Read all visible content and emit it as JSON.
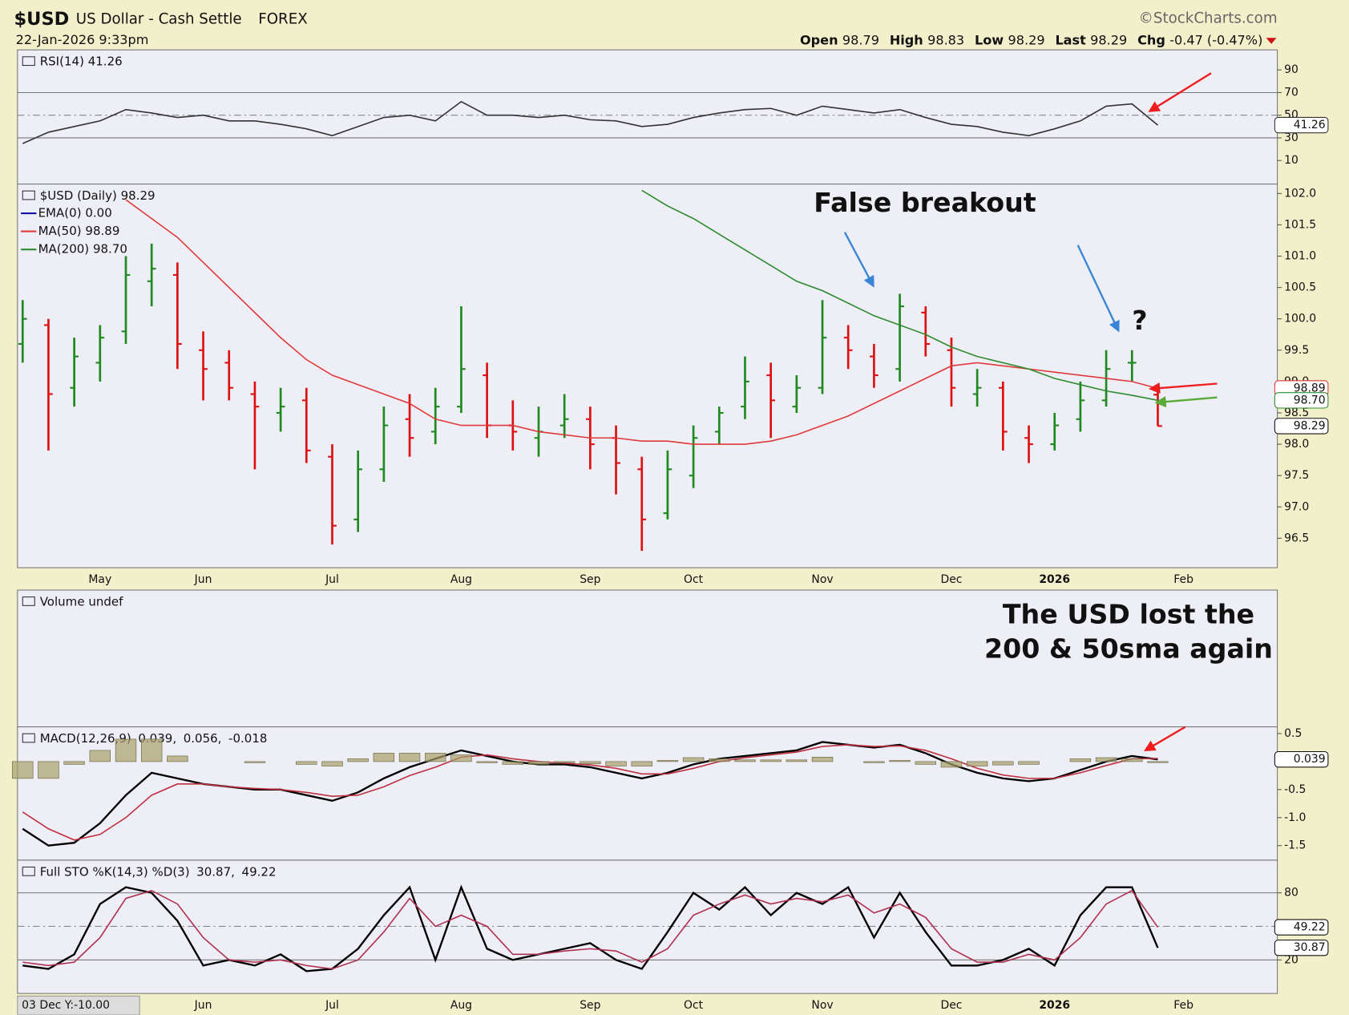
{
  "header": {
    "symbol": "$USD",
    "name": "US Dollar - Cash Settle",
    "exchange": "FOREX",
    "source": "©StockCharts.com",
    "date": "22-Jan-2026 9:33pm",
    "quote": [
      {
        "label": "Open",
        "value": "98.79"
      },
      {
        "label": "High",
        "value": "98.83"
      },
      {
        "label": "Low",
        "value": "98.29"
      },
      {
        "label": "Last",
        "value": "98.29"
      },
      {
        "label": "Chg",
        "value": "-0.47 (-0.47%)"
      }
    ]
  },
  "chart_data": [
    {
      "type": "line",
      "title": "RSI(14) 41.26",
      "color": "#333333",
      "values": [
        25,
        35,
        40,
        45,
        55,
        52,
        48,
        50,
        45,
        45,
        42,
        38,
        32,
        40,
        48,
        50,
        45,
        62,
        50,
        50,
        48,
        50,
        46,
        45,
        40,
        42,
        48,
        52,
        55,
        56,
        50,
        58,
        55,
        52,
        55,
        48,
        42,
        40,
        35,
        32,
        38,
        45,
        58,
        60,
        41.26,
        null
      ],
      "ylim": [
        -10.8,
        107.7
      ],
      "yticks": [
        90,
        70,
        50,
        30,
        10
      ],
      "ref_lines": [
        70,
        30
      ],
      "mid_line": 50,
      "tags": [
        {
          "value": 41.26,
          "label": "41.26",
          "color": "#333333"
        }
      ]
    },
    {
      "type": "ohlc",
      "title": "$USD (Daily) 98.29",
      "legend_layout": "stacked",
      "up_color": "#1f8a1f",
      "down_color": "#dd1111",
      "categories": [
        null,
        null,
        null,
        "May",
        null,
        null,
        null,
        "Jun",
        null,
        null,
        null,
        null,
        "Jul",
        null,
        null,
        null,
        null,
        "Aug",
        null,
        null,
        null,
        null,
        "Sep",
        null,
        null,
        null,
        "Oct",
        null,
        null,
        null,
        null,
        "Nov",
        null,
        null,
        null,
        null,
        "Dec",
        null,
        null,
        null,
        "2026",
        null,
        null,
        null,
        null,
        "Feb"
      ],
      "ohlc": {
        "open": [
          99.6,
          99.9,
          98.9,
          99.3,
          99.8,
          100.6,
          100.7,
          99.5,
          99.3,
          98.8,
          98.5,
          98.7,
          97.8,
          96.8,
          97.6,
          98.4,
          98.2,
          98.6,
          99.1,
          98.3,
          98.1,
          98.3,
          98.4,
          98.1,
          97.6,
          96.9,
          97.5,
          98.2,
          98.6,
          99.1,
          98.6,
          98.9,
          99.7,
          99.4,
          99.2,
          100.1,
          99.5,
          98.8,
          98.9,
          98.1,
          98.0,
          98.4,
          98.7,
          99.3,
          98.79,
          null
        ],
        "high": [
          100.3,
          100.0,
          99.7,
          99.9,
          101.0,
          101.2,
          100.9,
          99.8,
          99.5,
          99.0,
          98.9,
          98.9,
          98.0,
          97.9,
          98.6,
          98.8,
          98.9,
          100.2,
          99.3,
          98.7,
          98.6,
          98.8,
          98.6,
          98.3,
          97.8,
          97.9,
          98.3,
          98.6,
          99.4,
          99.3,
          99.1,
          100.3,
          99.9,
          99.6,
          100.4,
          100.2,
          99.7,
          99.2,
          99.0,
          98.3,
          98.5,
          99.0,
          99.5,
          99.5,
          98.83,
          null
        ],
        "low": [
          99.3,
          97.9,
          98.6,
          99.0,
          99.6,
          100.2,
          99.2,
          98.7,
          98.7,
          97.6,
          98.2,
          97.7,
          96.4,
          96.6,
          97.4,
          97.8,
          98.0,
          98.5,
          98.1,
          97.9,
          97.8,
          98.1,
          97.6,
          97.2,
          96.3,
          96.8,
          97.3,
          98.0,
          98.4,
          98.1,
          98.5,
          98.8,
          99.2,
          98.9,
          99.0,
          99.4,
          98.6,
          98.6,
          97.9,
          97.7,
          97.9,
          98.2,
          98.6,
          99.0,
          98.29,
          null
        ],
        "close": [
          100.0,
          98.8,
          99.4,
          99.7,
          100.7,
          100.8,
          99.6,
          99.2,
          98.9,
          98.6,
          98.6,
          97.9,
          96.7,
          97.6,
          98.3,
          98.1,
          98.6,
          99.2,
          98.3,
          98.2,
          98.2,
          98.4,
          98.0,
          97.7,
          96.8,
          97.6,
          98.1,
          98.5,
          99.0,
          98.7,
          98.9,
          99.7,
          99.5,
          99.1,
          100.2,
          99.6,
          98.9,
          98.9,
          98.2,
          98.0,
          98.3,
          98.7,
          99.2,
          99.3,
          98.29,
          null
        ]
      },
      "series": [
        {
          "name": "EMA(0) 0.00",
          "color": "#1010a0",
          "values": [
            null,
            null,
            null,
            null,
            null,
            null,
            null,
            null,
            null,
            null,
            null,
            null,
            null,
            null,
            null,
            null,
            null,
            null,
            null,
            null,
            null,
            null,
            null,
            null,
            null,
            null,
            null,
            null,
            null,
            null,
            null,
            null,
            null,
            null,
            null,
            null,
            null,
            null,
            null,
            null,
            null,
            null,
            null,
            null,
            null,
            null
          ]
        },
        {
          "name": "MA(50) 98.89",
          "color": "#e03a3a",
          "values": [
            null,
            null,
            null,
            null,
            101.9,
            101.6,
            101.3,
            100.9,
            100.5,
            100.1,
            99.7,
            99.35,
            99.1,
            98.95,
            98.8,
            98.65,
            98.4,
            98.3,
            98.3,
            98.3,
            98.2,
            98.15,
            98.1,
            98.1,
            98.05,
            98.05,
            98.0,
            98.0,
            98.0,
            98.05,
            98.15,
            98.3,
            98.45,
            98.65,
            98.85,
            99.05,
            99.25,
            99.3,
            99.25,
            99.2,
            99.15,
            99.1,
            99.05,
            99.0,
            98.89,
            null
          ]
        },
        {
          "name": "MA(200) 98.70",
          "color": "#2e8b2e",
          "values": [
            null,
            null,
            null,
            null,
            null,
            null,
            null,
            null,
            null,
            null,
            null,
            null,
            null,
            null,
            null,
            null,
            null,
            null,
            null,
            null,
            null,
            null,
            null,
            null,
            102.05,
            101.8,
            101.6,
            101.35,
            101.1,
            100.85,
            100.6,
            100.45,
            100.25,
            100.05,
            99.9,
            99.75,
            99.55,
            99.4,
            99.3,
            99.2,
            99.05,
            98.95,
            98.85,
            98.78,
            98.7,
            null
          ]
        }
      ],
      "ylim": [
        96.03,
        102.15
      ],
      "yticks": [
        {
          "value": 102,
          "label": "102.0"
        },
        101.5,
        {
          "value": 101,
          "label": "101.0"
        },
        100.5,
        {
          "value": 100,
          "label": "100.0"
        },
        99.5,
        {
          "value": 99,
          "label": "99.0"
        },
        98.5,
        {
          "value": 98,
          "label": "98.0"
        },
        97.5,
        {
          "value": 97,
          "label": "97.0"
        },
        96.5
      ],
      "tags": [
        {
          "value": 98.89,
          "label": "98.89",
          "color": "#e03a3a"
        },
        {
          "value": 98.7,
          "label": "98.70",
          "color": "#2e8b2e"
        },
        {
          "value": 98.29,
          "label": "98.29",
          "color": "#111111"
        }
      ],
      "annotations": [
        {
          "text": "False breakout",
          "color": "#3a86d6"
        },
        {
          "text": "?",
          "color": "#3a86d6"
        }
      ]
    },
    {
      "type": "volume",
      "title": "Volume undef",
      "annotations": [
        {
          "text": "The USD lost the",
          "color": "#a020f0"
        },
        {
          "text": "200 & 50sma again",
          "color": "#a020f0"
        }
      ]
    },
    {
      "type": "line",
      "title": "MACD(12,26,9)",
      "legend_layout": "inline",
      "series": [
        {
          "name": "0.039,",
          "color": "#000000",
          "values": [
            -1.2,
            -1.5,
            -1.45,
            -1.1,
            -0.6,
            -0.2,
            -0.3,
            -0.4,
            -0.45,
            -0.5,
            -0.5,
            -0.6,
            -0.7,
            -0.55,
            -0.3,
            -0.1,
            0.05,
            0.2,
            0.1,
            0.0,
            -0.05,
            -0.05,
            -0.1,
            -0.2,
            -0.3,
            -0.2,
            -0.05,
            0.05,
            0.1,
            0.15,
            0.2,
            0.35,
            0.3,
            0.25,
            0.3,
            0.15,
            -0.05,
            -0.2,
            -0.3,
            -0.35,
            -0.3,
            -0.15,
            0.0,
            0.1,
            0.039,
            null
          ]
        },
        {
          "name": "0.056,",
          "color": "#c03040",
          "values": [
            -0.9,
            -1.2,
            -1.4,
            -1.3,
            -1.0,
            -0.6,
            -0.4,
            -0.4,
            -0.45,
            -0.48,
            -0.5,
            -0.55,
            -0.62,
            -0.6,
            -0.45,
            -0.25,
            -0.1,
            0.08,
            0.12,
            0.05,
            0.0,
            -0.03,
            -0.06,
            -0.12,
            -0.22,
            -0.22,
            -0.12,
            0.0,
            0.07,
            0.12,
            0.17,
            0.27,
            0.3,
            0.27,
            0.28,
            0.2,
            0.05,
            -0.12,
            -0.24,
            -0.3,
            -0.3,
            -0.2,
            -0.07,
            0.05,
            0.056,
            null
          ]
        },
        {
          "name": "-0.018",
          "color": "#a89f6b",
          "style": "histogram",
          "values": [
            -0.3,
            -0.3,
            -0.05,
            0.2,
            0.4,
            0.4,
            0.1,
            0.0,
            0.0,
            -0.02,
            0.0,
            -0.05,
            -0.08,
            0.05,
            0.15,
            0.15,
            0.15,
            0.12,
            -0.02,
            -0.05,
            -0.05,
            -0.02,
            -0.04,
            -0.08,
            -0.08,
            0.02,
            0.07,
            0.05,
            0.03,
            0.03,
            0.03,
            0.08,
            0.0,
            -0.02,
            0.02,
            -0.05,
            -0.1,
            -0.08,
            -0.06,
            -0.05,
            0.0,
            0.05,
            0.07,
            0.05,
            -0.018,
            null
          ]
        }
      ],
      "ylim": [
        -1.76,
        0.62
      ],
      "yticks": [
        0.5,
        -0.5,
        {
          "value": -1,
          "label": "-1.0"
        },
        -1.5
      ],
      "tags": [
        {
          "value": 0.039,
          "label": "0.039",
          "color": "#111111"
        }
      ]
    },
    {
      "type": "line",
      "title": "Full STO %K(14,3) %D(3)",
      "legend_layout": "inline",
      "categories": [
        null,
        null,
        null,
        null,
        null,
        null,
        null,
        "Jun",
        null,
        null,
        null,
        null,
        "Jul",
        null,
        null,
        null,
        null,
        "Aug",
        null,
        null,
        null,
        null,
        "Sep",
        null,
        null,
        null,
        "Oct",
        null,
        null,
        null,
        null,
        "Nov",
        null,
        null,
        null,
        null,
        "Dec",
        null,
        null,
        null,
        "2026",
        null,
        null,
        null,
        null,
        "Feb"
      ],
      "series": [
        {
          "name": "30.87,",
          "color": "#000000",
          "values": [
            15,
            12,
            25,
            70,
            85,
            80,
            55,
            15,
            20,
            15,
            25,
            10,
            12,
            30,
            60,
            85,
            20,
            85,
            30,
            20,
            25,
            30,
            35,
            20,
            12,
            45,
            80,
            65,
            85,
            60,
            80,
            70,
            85,
            40,
            80,
            45,
            15,
            15,
            20,
            30,
            15,
            60,
            85,
            85,
            30.87,
            null
          ]
        },
        {
          "name": "49.22",
          "color": "#b03050",
          "values": [
            18,
            15,
            18,
            40,
            75,
            82,
            70,
            40,
            20,
            18,
            20,
            15,
            12,
            20,
            45,
            75,
            50,
            60,
            50,
            25,
            25,
            28,
            30,
            28,
            18,
            30,
            60,
            70,
            78,
            70,
            75,
            72,
            78,
            62,
            70,
            58,
            30,
            18,
            18,
            25,
            20,
            40,
            70,
            82,
            49.22,
            null
          ]
        }
      ],
      "ylim": [
        -10,
        109.2
      ],
      "yticks": [
        80,
        20
      ],
      "ref_lines": [
        80,
        20
      ],
      "mid_line": 50,
      "tags": [
        {
          "value": 49.22,
          "label": "49.22",
          "color": "#111111"
        },
        {
          "value": 30.87,
          "label": "30.87",
          "color": "#111111"
        }
      ],
      "cursor_readout": "03 Dec Y:-10.00"
    }
  ]
}
